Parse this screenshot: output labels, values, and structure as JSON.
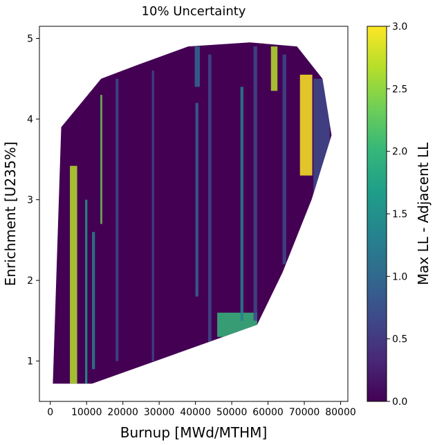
{
  "chart_data": {
    "type": "contour",
    "title": "10% Uncertainty",
    "xlabel": "Burnup [MWd/MTHM]",
    "ylabel": "Enrichment [U235%]",
    "xlim": [
      -3000,
      82000
    ],
    "ylim": [
      0.5,
      5.15
    ],
    "x_ticks": [
      0,
      10000,
      20000,
      30000,
      40000,
      50000,
      60000,
      70000,
      80000
    ],
    "x_tick_labels": [
      "0",
      "10000",
      "20000",
      "30000",
      "40000",
      "50000",
      "60000",
      "70000",
      "80000"
    ],
    "y_ticks": [
      1,
      2,
      3,
      4,
      5
    ],
    "y_tick_labels": [
      "1",
      "2",
      "3",
      "4",
      "5"
    ],
    "colorbar": {
      "label": "Max LL - Adjacent LL",
      "colormap": "viridis",
      "range": [
        0.0,
        3.0
      ],
      "ticks": [
        0.0,
        0.5,
        1.0,
        1.5,
        2.0,
        2.5,
        3.0
      ],
      "tick_labels": [
        "0.0",
        "0.5",
        "1.0",
        "1.5",
        "2.0",
        "2.5",
        "3.0"
      ]
    },
    "hull_boundary": [
      {
        "x": 700,
        "y": 0.72
      },
      {
        "x": 11500,
        "y": 0.72
      },
      {
        "x": 57000,
        "y": 1.45
      },
      {
        "x": 64000,
        "y": 2.1
      },
      {
        "x": 72000,
        "y": 3.0
      },
      {
        "x": 77500,
        "y": 3.8
      },
      {
        "x": 75000,
        "y": 4.5
      },
      {
        "x": 68000,
        "y": 4.9
      },
      {
        "x": 55000,
        "y": 4.95
      },
      {
        "x": 38000,
        "y": 4.9
      },
      {
        "x": 24000,
        "y": 4.67
      },
      {
        "x": 14000,
        "y": 4.5
      },
      {
        "x": 3000,
        "y": 3.9
      },
      {
        "x": 700,
        "y": 0.72
      }
    ],
    "base_value": 0.1,
    "regions": [
      {
        "name": "yellow-streak-low-burnup",
        "value": 2.8,
        "x0": 5400,
        "x1": 7400,
        "y0": 0.72,
        "y1": 3.42
      },
      {
        "name": "green-streak-low-burnup",
        "value": 1.8,
        "x0": 9600,
        "x1": 10200,
        "y0": 0.72,
        "y1": 3.0
      },
      {
        "name": "teal-streak-low-burnup",
        "value": 1.3,
        "x0": 11500,
        "x1": 12300,
        "y0": 0.9,
        "y1": 2.6
      },
      {
        "name": "yellow-band-right",
        "value": 2.9,
        "x0": 68800,
        "x1": 72200,
        "y0": 3.3,
        "y1": 4.55
      },
      {
        "name": "yellow-stripe-top",
        "value": 2.6,
        "x0": 60800,
        "x1": 62600,
        "y0": 4.35,
        "y1": 4.9
      },
      {
        "name": "green-edge-bottom",
        "value": 1.9,
        "x0": 46000,
        "x1": 57000,
        "y0": 1.3,
        "y1": 1.6
      },
      {
        "name": "teal-streak-mid-a",
        "value": 1.2,
        "x0": 52400,
        "x1": 53200,
        "y0": 1.5,
        "y1": 4.4
      },
      {
        "name": "teal-streak-mid-b",
        "value": 1.1,
        "x0": 40000,
        "x1": 40800,
        "y0": 1.8,
        "y1": 4.2
      },
      {
        "name": "teal-streak-top",
        "value": 1.0,
        "x0": 39800,
        "x1": 41200,
        "y0": 4.4,
        "y1": 4.9
      },
      {
        "name": "blue-streak-a",
        "value": 0.6,
        "x0": 28000,
        "x1": 28600,
        "y0": 1.0,
        "y1": 4.6
      },
      {
        "name": "blue-streak-b",
        "value": 0.6,
        "x0": 43500,
        "x1": 44400,
        "y0": 1.2,
        "y1": 4.8
      },
      {
        "name": "blue-streak-c",
        "value": 0.7,
        "x0": 56000,
        "x1": 57000,
        "y0": 1.5,
        "y1": 4.9
      },
      {
        "name": "blue-streak-d",
        "value": 0.5,
        "x0": 18000,
        "x1": 18800,
        "y0": 1.0,
        "y1": 4.5
      },
      {
        "name": "blue-streak-e",
        "value": 0.6,
        "x0": 64000,
        "x1": 65000,
        "y0": 2.2,
        "y1": 4.8
      },
      {
        "name": "blue-edge-right",
        "value": 0.8,
        "x0": 72500,
        "x1": 77000,
        "y0": 3.0,
        "y1": 4.5
      },
      {
        "name": "yellow-streak-mid",
        "value": 2.2,
        "x0": 13800,
        "x1": 14300,
        "y0": 2.7,
        "y1": 4.3
      }
    ]
  },
  "colors": {
    "viridis_stops": [
      "#440154",
      "#482878",
      "#3e4989",
      "#31688e",
      "#26828e",
      "#1f9e89",
      "#35b779",
      "#6ece58",
      "#b5de2b",
      "#fde725"
    ]
  }
}
